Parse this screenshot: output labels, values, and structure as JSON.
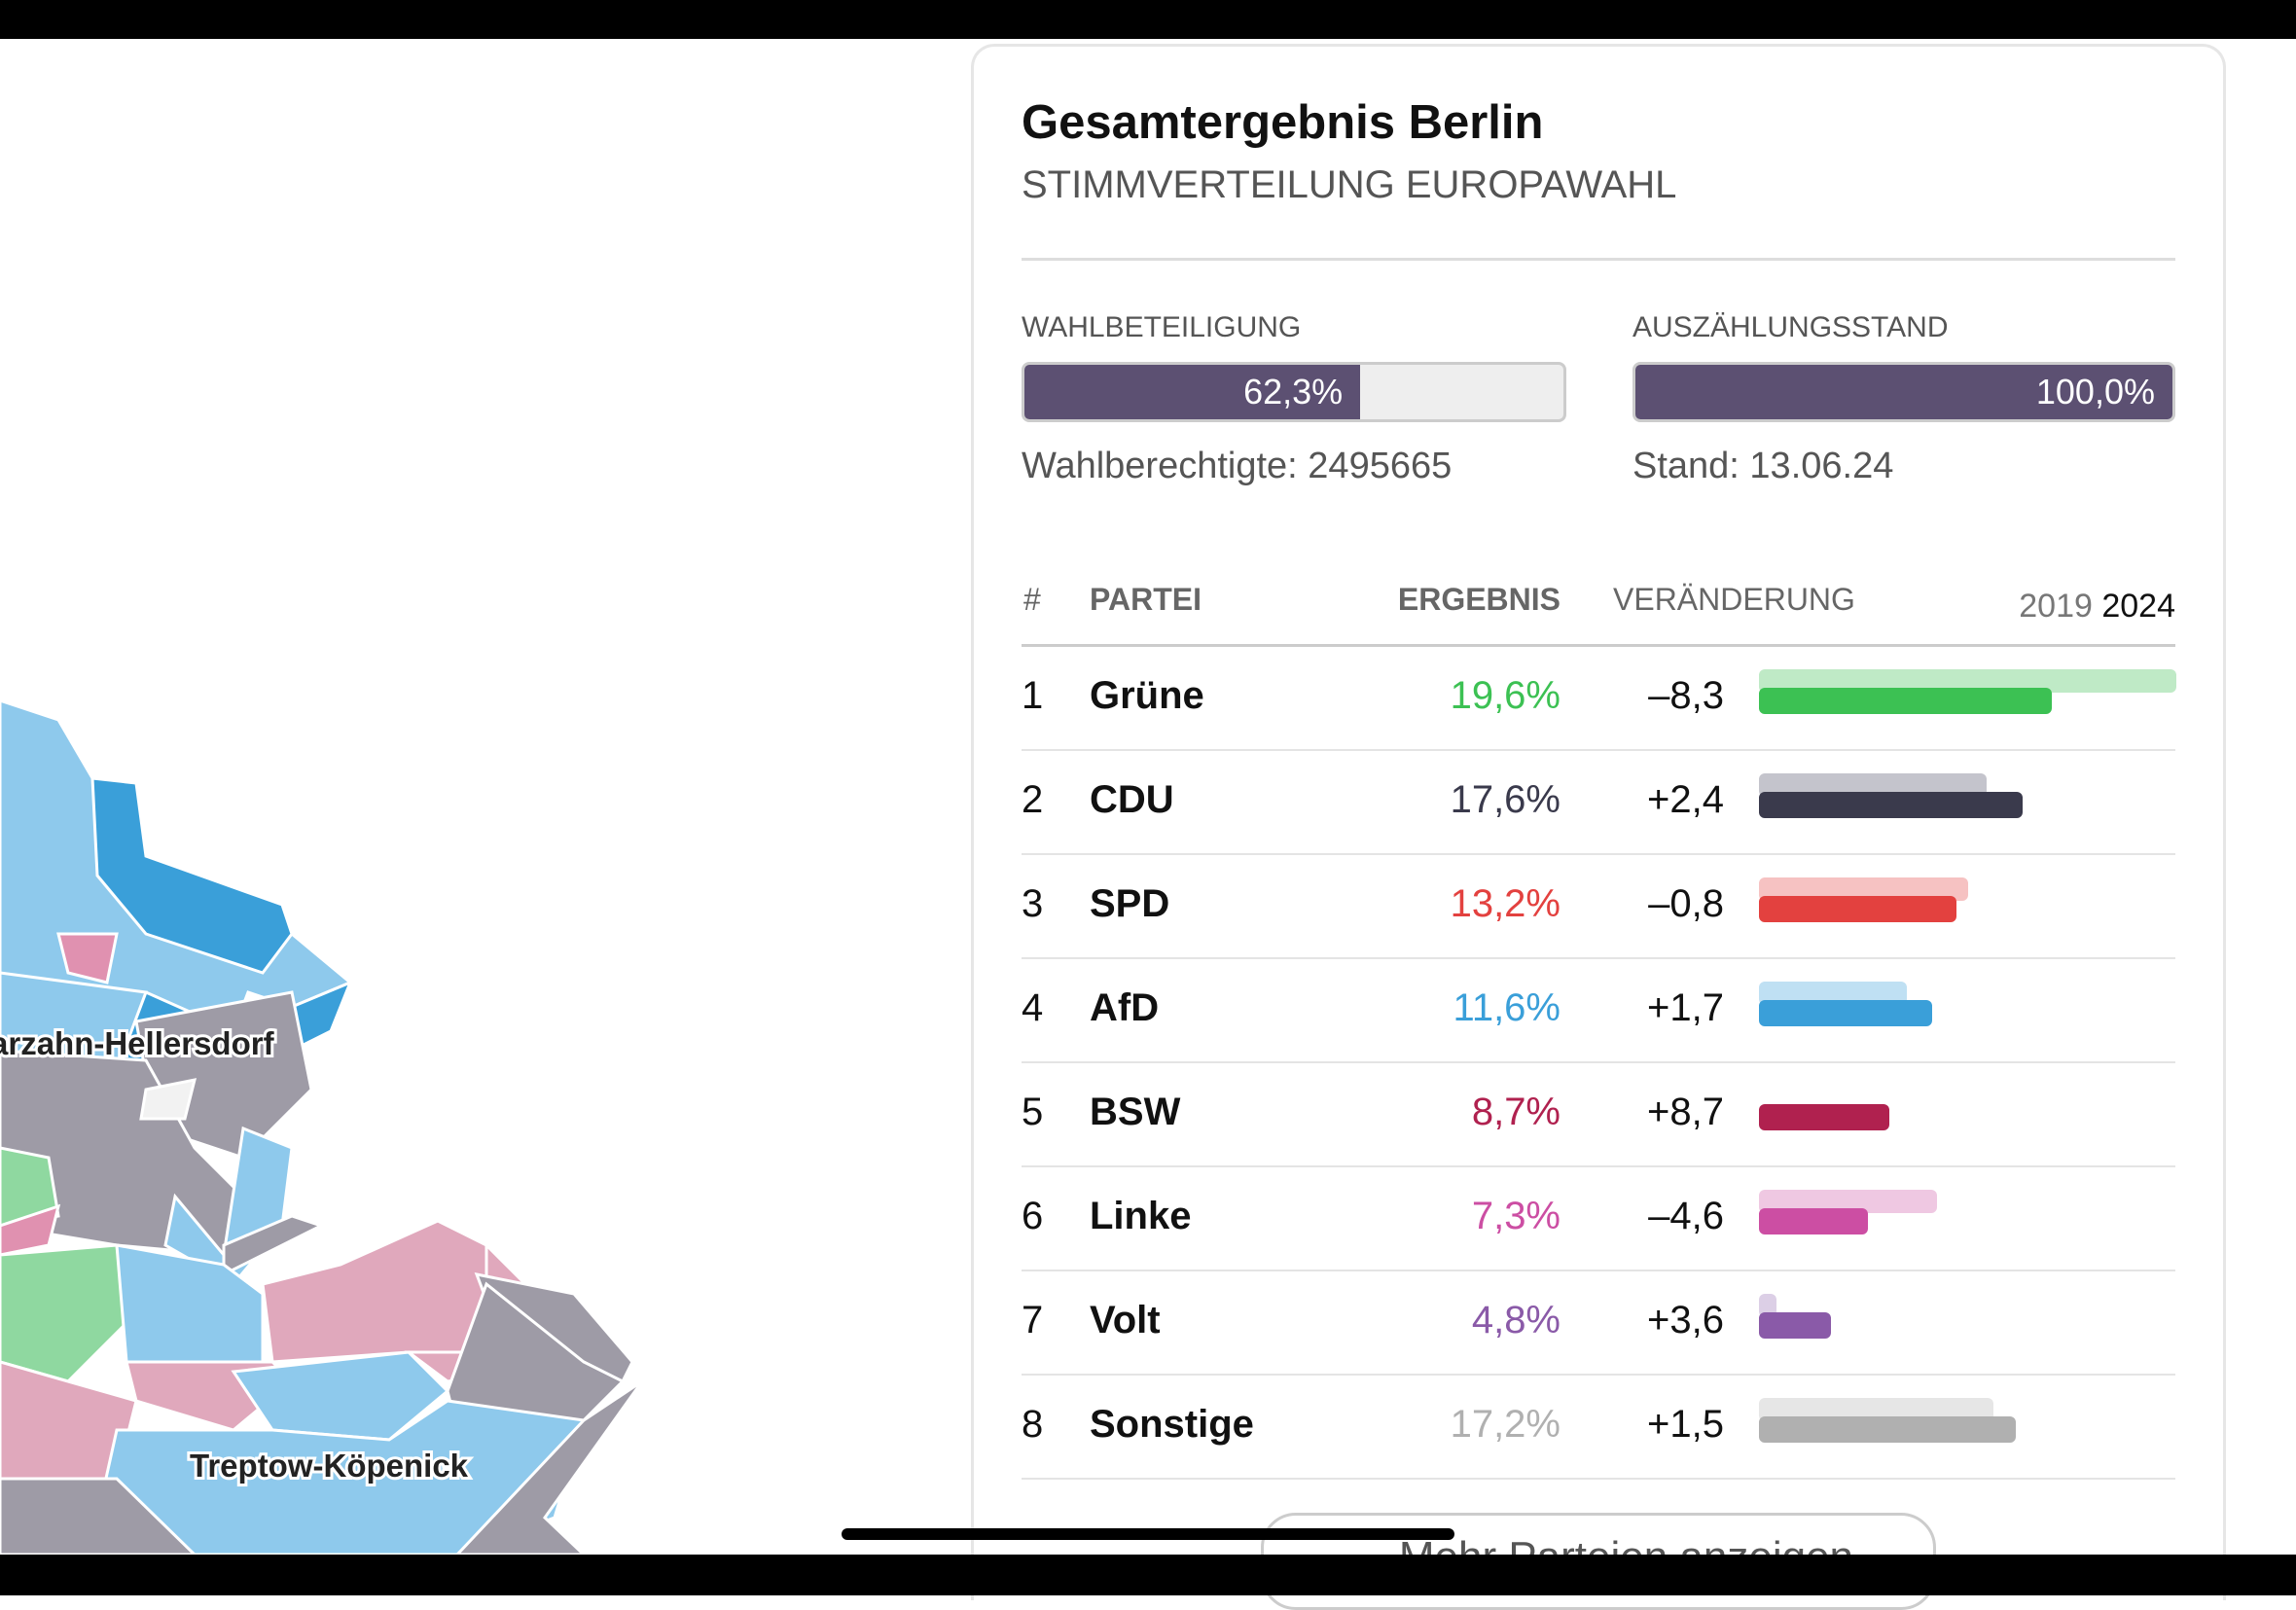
{
  "map": {
    "labels": [
      "arzahn-Hellersdorf",
      "Treptow-Köpenick"
    ]
  },
  "panel": {
    "title": "Gesamtergebnis Berlin",
    "subtitle": "STIMMVERTEILUNG EUROPAWAHL",
    "turnout": {
      "caption": "WAHLBETEILIGUNG",
      "value": 62.3,
      "label": "62,3%",
      "note": "Wahlberechtigte: 2495665"
    },
    "count": {
      "caption": "AUSZÄHLUNGSSTAND",
      "value": 100.0,
      "label": "100,0%",
      "note": "Stand: 13.06.24"
    },
    "table": {
      "headers": [
        "#",
        "PARTEI",
        "ERGEBNIS",
        "VERÄNDERUNG"
      ],
      "years": [
        "2019",
        "2024"
      ],
      "rows": [
        {
          "rank": "1",
          "party": "Grüne",
          "result": {
            "value": 19.6,
            "label": "19,6%"
          },
          "change": "–8,3",
          "value_2019": 27.9,
          "color": "#3cc153",
          "color_2019": "#bfeac6"
        },
        {
          "rank": "2",
          "party": "CDU",
          "result": {
            "value": 17.6,
            "label": "17,6%"
          },
          "change": "+2,4",
          "value_2019": 15.2,
          "color": "#3a3a4c",
          "color_2019": "#c4c4cc"
        },
        {
          "rank": "3",
          "party": "SPD",
          "result": {
            "value": 13.2,
            "label": "13,2%"
          },
          "change": "–0,8",
          "value_2019": 14.0,
          "color": "#e3413f",
          "color_2019": "#f6c2c2"
        },
        {
          "rank": "4",
          "party": "AfD",
          "result": {
            "value": 11.6,
            "label": "11,6%"
          },
          "change": "+1,7",
          "value_2019": 9.9,
          "color": "#3a9fd9",
          "color_2019": "#bfe0f3"
        },
        {
          "rank": "5",
          "party": "BSW",
          "result": {
            "value": 8.7,
            "label": "8,7%"
          },
          "change": "+8,7",
          "value_2019": 0,
          "color": "#b0214f",
          "color_2019": "#f0c0d0"
        },
        {
          "rank": "6",
          "party": "Linke",
          "result": {
            "value": 7.3,
            "label": "7,3%"
          },
          "change": "–4,6",
          "value_2019": 11.9,
          "color": "#cc4ea3",
          "color_2019": "#efc8e2"
        },
        {
          "rank": "7",
          "party": "Volt",
          "result": {
            "value": 4.8,
            "label": "4,8%"
          },
          "change": "+3,6",
          "value_2019": 1.2,
          "color": "#8a5aa8",
          "color_2019": "#dccfe6"
        },
        {
          "rank": "8",
          "party": "Sonstige",
          "result": {
            "value": 17.2,
            "label": "17,2%"
          },
          "change": "+1,5",
          "value_2019": 15.7,
          "color": "#b0b0b0",
          "color_2019": "#e6e6e6"
        }
      ]
    },
    "button": "Mehr Parteien anzeigen"
  }
}
